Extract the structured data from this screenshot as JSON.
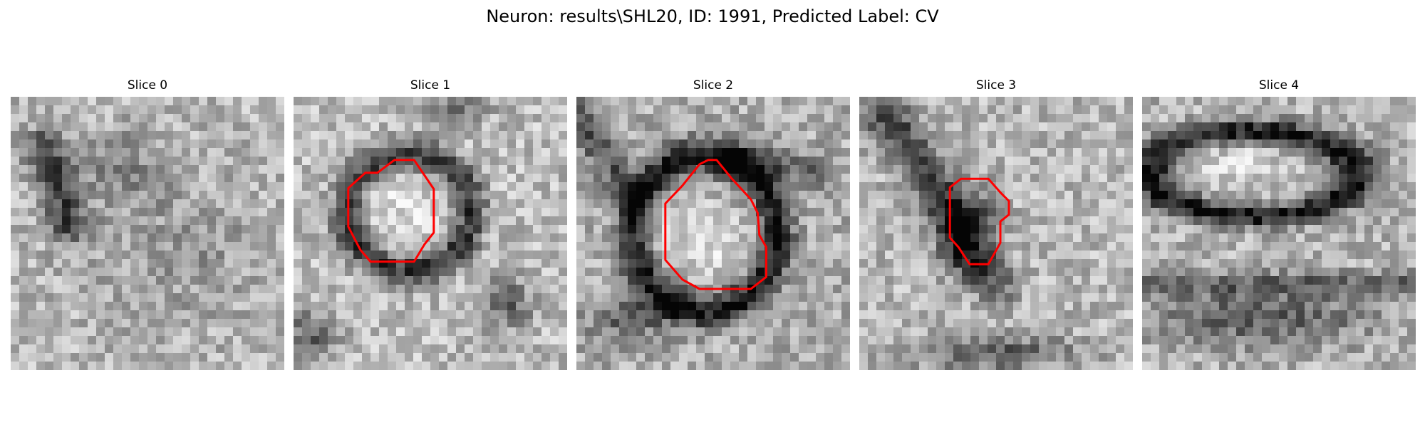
{
  "figure": {
    "title": "Neuron: results\\SHL20, ID: 1991, Predicted Label: CV"
  },
  "panels": [
    {
      "title": "Slice 0",
      "has_contour": false
    },
    {
      "title": "Slice 1",
      "has_contour": true
    },
    {
      "title": "Slice 2",
      "has_contour": true
    },
    {
      "title": "Slice 3",
      "has_contour": true
    },
    {
      "title": "Slice 4",
      "has_contour": false
    }
  ],
  "colors": {
    "contour": "#ff0000",
    "background": "#ffffff"
  }
}
